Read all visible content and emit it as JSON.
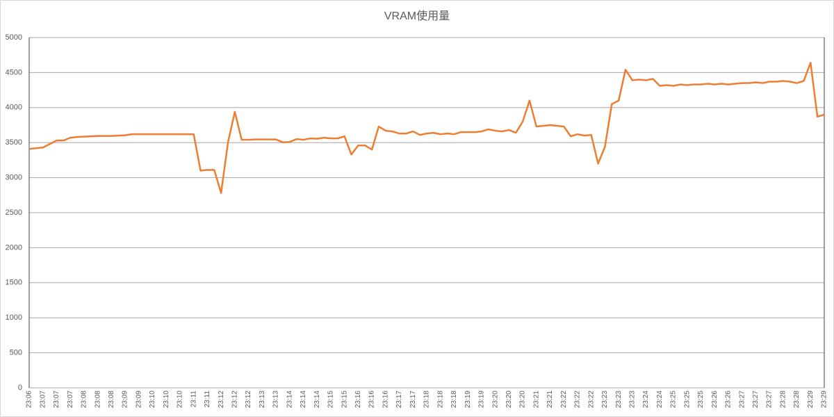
{
  "chart_data": {
    "type": "line",
    "title": "VRAM使用量",
    "categories": [
      "23:06",
      null,
      "23:07",
      null,
      "23:07",
      null,
      "23:07",
      null,
      "23:08",
      null,
      "23:08",
      null,
      "23:08",
      null,
      "23:09",
      null,
      "23:09",
      null,
      "23:10",
      null,
      "23:10",
      null,
      "23:10",
      null,
      "23:11",
      null,
      "23:11",
      null,
      "23:12",
      null,
      "23:12",
      null,
      "23:12",
      null,
      "23:13",
      null,
      "23:13",
      null,
      "23:14",
      null,
      "23:14",
      null,
      "23:14",
      null,
      "23:15",
      null,
      "23:15",
      null,
      "23:16",
      null,
      "23:16",
      null,
      "23:16",
      null,
      "23:17",
      null,
      "23:17",
      null,
      "23:18",
      null,
      "23:18",
      null,
      "23:18",
      null,
      "23:19",
      null,
      "23:19",
      null,
      "23:20",
      null,
      "23:20",
      null,
      "23:20",
      null,
      "23:21",
      null,
      "23:21",
      null,
      "23:22",
      null,
      "23:22",
      null,
      "23:22",
      null,
      "23:23",
      null,
      "23:23",
      null,
      "23:23",
      null,
      "23:24",
      null,
      "23:24",
      null,
      "23:25",
      null,
      "23:25",
      null,
      "23:25",
      null,
      "23:26",
      null,
      "23:26",
      null,
      "23:27",
      null,
      "23:27",
      null,
      "23:27",
      null,
      "23:28",
      null,
      "23:28",
      null,
      "23:29",
      null,
      "23:29"
    ],
    "series": [
      {
        "color": "#ed7d31",
        "values": [
          3410,
          3420,
          3430,
          3480,
          3530,
          3530,
          3570,
          3580,
          3585,
          3590,
          3595,
          3595,
          3595,
          3600,
          3605,
          3620,
          3620,
          3620,
          3620,
          3620,
          3620,
          3620,
          3620,
          3620,
          3620,
          3100,
          3110,
          3110,
          2780,
          3500,
          3940,
          3540,
          3540,
          3545,
          3545,
          3545,
          3545,
          3505,
          3510,
          3550,
          3540,
          3560,
          3555,
          3570,
          3560,
          3560,
          3590,
          3330,
          3460,
          3460,
          3400,
          3730,
          3670,
          3660,
          3630,
          3630,
          3660,
          3610,
          3630,
          3640,
          3620,
          3630,
          3620,
          3650,
          3650,
          3650,
          3660,
          3690,
          3670,
          3660,
          3680,
          3640,
          3800,
          4100,
          3730,
          3740,
          3750,
          3740,
          3730,
          3590,
          3620,
          3600,
          3610,
          3200,
          3440,
          4050,
          4100,
          4540,
          4390,
          4400,
          4390,
          4410,
          4310,
          4320,
          4310,
          4330,
          4320,
          4330,
          4330,
          4340,
          4330,
          4340,
          4330,
          4340,
          4350,
          4350,
          4360,
          4350,
          4370,
          4370,
          4380,
          4370,
          4350,
          4380,
          4640,
          3870,
          3900
        ]
      }
    ],
    "ylim": [
      0,
      5000
    ],
    "yticks": [
      0,
      500,
      1000,
      1500,
      2000,
      2500,
      3000,
      3500,
      4000,
      4500,
      5000
    ],
    "grid": true
  }
}
